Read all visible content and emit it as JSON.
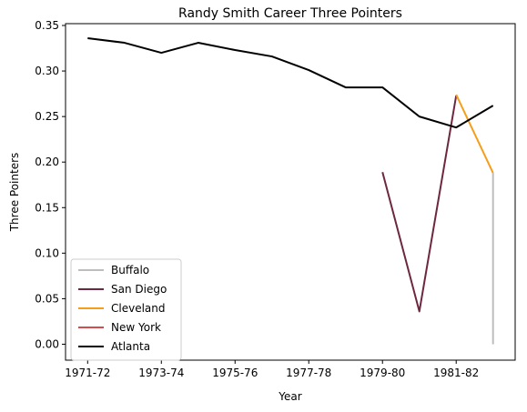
{
  "chart_data": {
    "type": "line",
    "title": "Randy Smith  Career Three Pointers",
    "xlabel": "Year",
    "ylabel": "Three Pointers",
    "x": [
      "1971-72",
      "1972-73",
      "1973-74",
      "1974-75",
      "1975-76",
      "1976-77",
      "1977-78",
      "1978-79",
      "1979-80",
      "1980-81",
      "1981-82",
      "1982-83"
    ],
    "x_tick_labels": [
      "1971-72",
      "1973-74",
      "1975-76",
      "1977-78",
      "1979-80",
      "1981-82"
    ],
    "xlim": [
      -0.6,
      11.6
    ],
    "ylim": [
      -0.0175,
      0.352
    ],
    "y_ticks": [
      0.0,
      0.05,
      0.1,
      0.15,
      0.2,
      0.25,
      0.3,
      0.35
    ],
    "y_tick_labels": [
      "0.00",
      "0.05",
      "0.10",
      "0.15",
      "0.20",
      "0.25",
      "0.30",
      "0.35"
    ],
    "grid": false,
    "legend_position": "lower-left",
    "series": [
      {
        "name": "Buffalo",
        "color": "#bdbdbd",
        "points": [
          [
            11,
            0.188
          ],
          [
            11,
            0.0
          ]
        ]
      },
      {
        "name": "San Diego",
        "color": "#6e2740",
        "points": [
          [
            8,
            0.189
          ],
          [
            9,
            0.036
          ],
          [
            10,
            0.273
          ]
        ]
      },
      {
        "name": "Cleveland",
        "color": "#f59e1b",
        "points": [
          [
            10,
            0.274
          ],
          [
            11,
            0.188
          ]
        ]
      },
      {
        "name": "New York",
        "color": "#d24d4d",
        "points": []
      },
      {
        "name": "Atlanta",
        "color": "#000000",
        "points": [
          [
            0,
            0.336
          ],
          [
            1,
            0.331
          ],
          [
            2,
            0.32
          ],
          [
            3,
            0.331
          ],
          [
            4,
            0.323
          ],
          [
            5,
            0.316
          ],
          [
            6,
            0.301
          ],
          [
            7,
            0.282
          ],
          [
            8,
            0.282
          ],
          [
            9,
            0.25
          ],
          [
            10,
            0.238
          ],
          [
            11,
            0.262
          ]
        ]
      }
    ]
  }
}
